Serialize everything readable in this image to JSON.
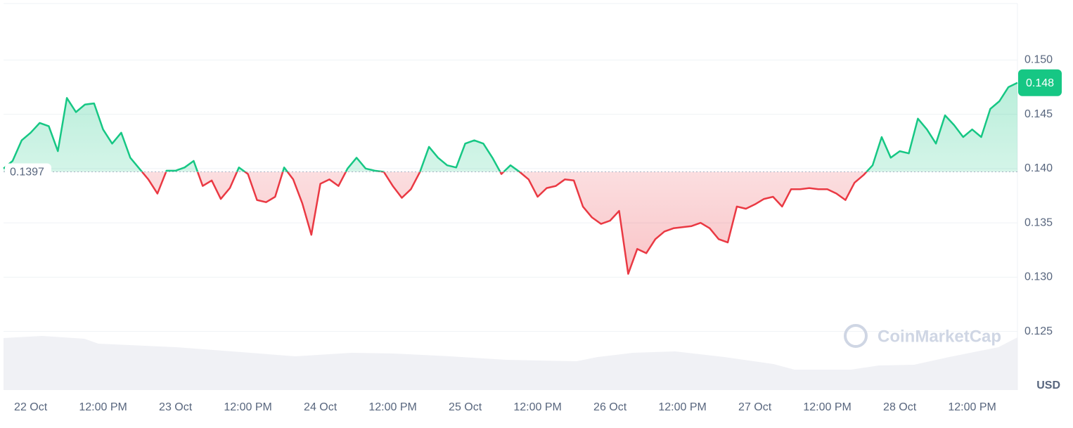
{
  "chart_data": {
    "type": "line",
    "currency": "USD",
    "watermark": "CoinMarketCap",
    "baseline": 0.1397,
    "last_price_label": "0.148",
    "up_color": "#16c784",
    "down_color": "#ea3943",
    "categories": [
      null,
      null,
      null,
      "22 Oct",
      null,
      null,
      null,
      null,
      null,
      null,
      null,
      "12:00 PM",
      null,
      null,
      null,
      null,
      null,
      null,
      null,
      "23 Oct",
      null,
      null,
      null,
      null,
      null,
      null,
      null,
      "12:00 PM",
      null,
      null,
      null,
      null,
      null,
      null,
      null,
      "24 Oct",
      null,
      null,
      null,
      null,
      null,
      null,
      null,
      "12:00 PM",
      null,
      null,
      null,
      null,
      null,
      null,
      null,
      "25 Oct",
      null,
      null,
      null,
      null,
      null,
      null,
      null,
      "12:00 PM",
      null,
      null,
      null,
      null,
      null,
      null,
      null,
      "26 Oct",
      null,
      null,
      null,
      null,
      null,
      null,
      null,
      "12:00 PM",
      null,
      null,
      null,
      null,
      null,
      null,
      null,
      "27 Oct",
      null,
      null,
      null,
      null,
      null,
      null,
      null,
      "12:00 PM",
      null,
      null,
      null,
      null,
      null,
      null,
      null,
      "28 Oct",
      null,
      null,
      null,
      null,
      null,
      null,
      null,
      "12:00 PM",
      null,
      null,
      null,
      null,
      null
    ],
    "values": [
      0.14,
      0.1407,
      0.1426,
      0.1433,
      0.1442,
      0.1439,
      0.1416,
      0.1465,
      0.1452,
      0.1459,
      0.146,
      0.1436,
      0.1423,
      0.1433,
      0.141,
      0.14,
      0.139,
      0.1377,
      0.1398,
      0.1398,
      0.1401,
      0.1407,
      0.1384,
      0.1389,
      0.1372,
      0.1382,
      0.1401,
      0.1395,
      0.1371,
      0.1369,
      0.1374,
      0.1401,
      0.139,
      0.1368,
      0.1339,
      0.1386,
      0.139,
      0.1384,
      0.14,
      0.141,
      0.14,
      0.1398,
      0.1397,
      0.1384,
      0.1373,
      0.1381,
      0.1397,
      0.142,
      0.141,
      0.1403,
      0.1401,
      0.1423,
      0.1426,
      0.1423,
      0.141,
      0.1395,
      0.1403,
      0.1397,
      0.139,
      0.1374,
      0.1382,
      0.1384,
      0.139,
      0.1389,
      0.1365,
      0.1355,
      0.1349,
      0.1352,
      0.1361,
      0.1303,
      0.1326,
      0.1322,
      0.1335,
      0.1342,
      0.1345,
      0.1346,
      0.1347,
      0.135,
      0.1345,
      0.1335,
      0.1332,
      0.1365,
      0.1363,
      0.1367,
      0.1372,
      0.1374,
      0.1365,
      0.1381,
      0.1381,
      0.1382,
      0.1381,
      0.1381,
      0.1377,
      0.1371,
      0.1387,
      0.1394,
      0.1403,
      0.1429,
      0.141,
      0.1416,
      0.1414,
      0.1446,
      0.1436,
      0.1423,
      0.1449,
      0.144,
      0.1429,
      0.1436,
      0.1429,
      0.1455,
      0.1462,
      0.1475,
      0.1479
    ],
    "ylim": [
      0.1196,
      0.1552
    ],
    "yticks": [
      0.125,
      {
        "value": 0.13,
        "label": "0.130"
      },
      0.135,
      {
        "value": 0.14,
        "label": "0.140"
      },
      0.145,
      {
        "value": 0.15,
        "label": "0.150"
      }
    ],
    "grid": true
  }
}
